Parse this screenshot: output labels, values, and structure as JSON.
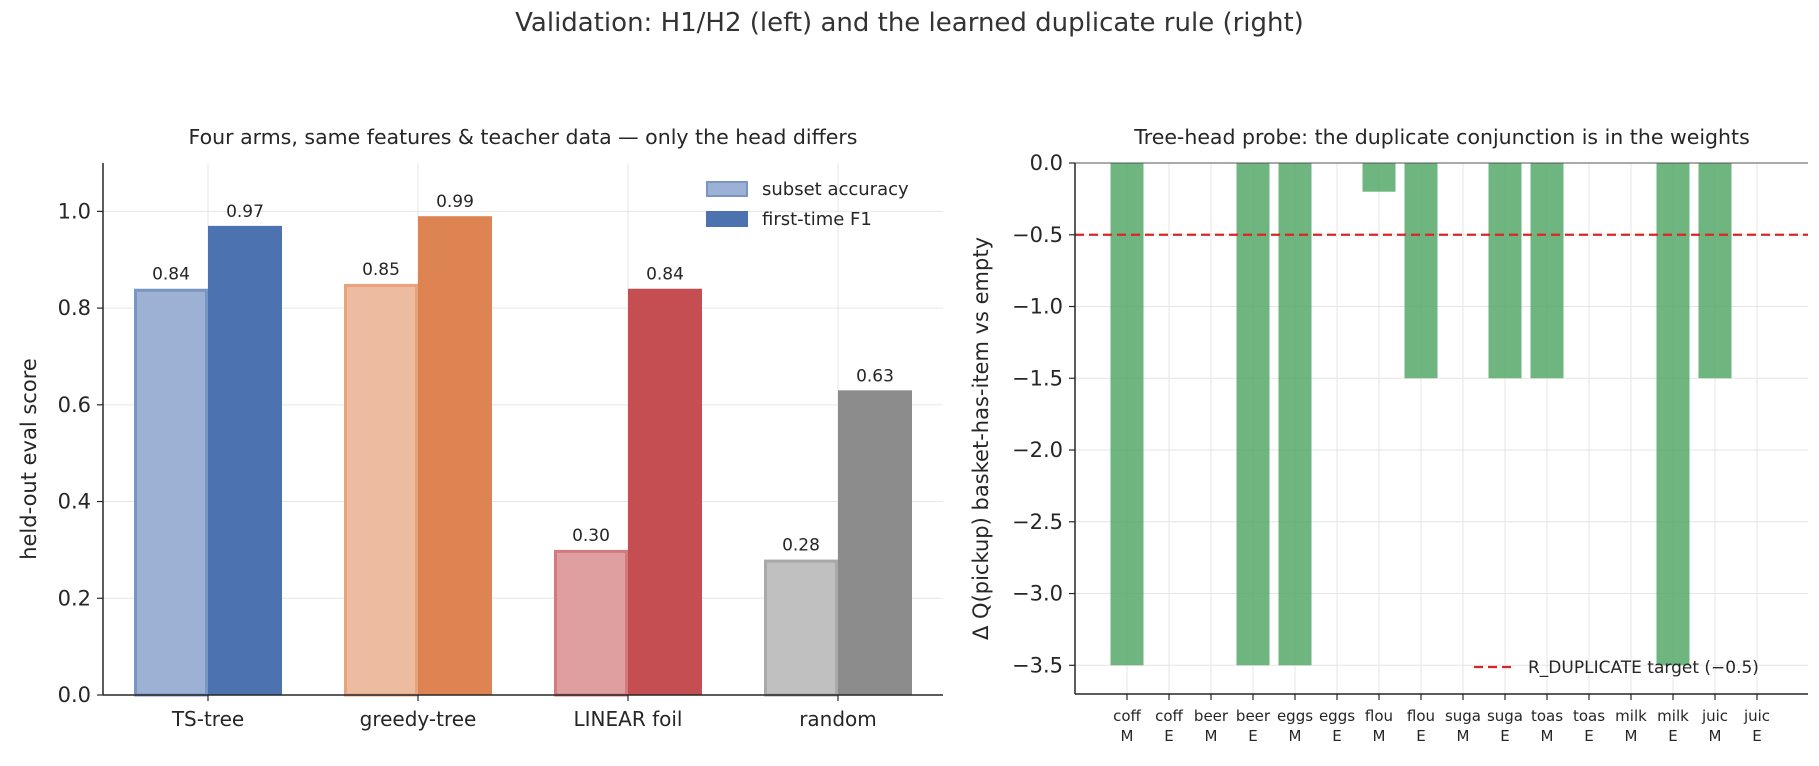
{
  "figure": {
    "suptitle": "Validation: H1/H2 (left) and the learned duplicate rule (right)"
  },
  "chart_data": [
    {
      "type": "bar",
      "title": "Four arms, same features & teacher data — only the head differs",
      "xlabel": "",
      "ylabel": "held-out eval score",
      "ylim": [
        0.0,
        1.1
      ],
      "yticks": [
        "0.0",
        "0.2",
        "0.4",
        "0.6",
        "0.8",
        "1.0"
      ],
      "grid": true,
      "legend_position": "top-right",
      "categories": [
        "TS-tree",
        "greedy-tree",
        "LINEAR foil",
        "random"
      ],
      "bar_colors": [
        "#4c72b0",
        "#dd8452",
        "#c44e52",
        "#8c8c8c"
      ],
      "series": [
        {
          "name": "subset accuracy",
          "values": [
            0.84,
            0.85,
            0.3,
            0.28
          ],
          "labels": [
            "0.84",
            "0.85",
            "0.30",
            "0.28"
          ]
        },
        {
          "name": "first-time F1",
          "values": [
            0.97,
            0.99,
            0.84,
            0.63
          ],
          "labels": [
            "0.97",
            "0.99",
            "0.84",
            "0.63"
          ]
        }
      ]
    },
    {
      "type": "bar",
      "title": "Tree-head probe: the duplicate conjunction is in the weights",
      "xlabel": "",
      "ylabel": "Δ Q(pickup)  basket-has-item vs empty",
      "ylim": [
        -3.7,
        0.0
      ],
      "yticks": [
        "0.0",
        "−0.5",
        "−1.0",
        "−1.5",
        "−2.0",
        "−2.5",
        "−3.0",
        "−3.5"
      ],
      "grid": true,
      "legend_position": "bottom-right",
      "color": "#55a868",
      "categories": [
        {
          "top": "coff",
          "bottom": "M"
        },
        {
          "top": "coff",
          "bottom": "E"
        },
        {
          "top": "beer",
          "bottom": "M"
        },
        {
          "top": "beer",
          "bottom": "E"
        },
        {
          "top": "eggs",
          "bottom": "M"
        },
        {
          "top": "eggs",
          "bottom": "E"
        },
        {
          "top": "flou",
          "bottom": "M"
        },
        {
          "top": "flou",
          "bottom": "E"
        },
        {
          "top": "suga",
          "bottom": "M"
        },
        {
          "top": "suga",
          "bottom": "E"
        },
        {
          "top": "toas",
          "bottom": "M"
        },
        {
          "top": "toas",
          "bottom": "E"
        },
        {
          "top": "milk",
          "bottom": "M"
        },
        {
          "top": "milk",
          "bottom": "E"
        },
        {
          "top": "juic",
          "bottom": "M"
        },
        {
          "top": "juic",
          "bottom": "E"
        }
      ],
      "values": [
        -3.5,
        0,
        0,
        -3.5,
        -3.5,
        0,
        -0.2,
        -1.5,
        0,
        -1.5,
        -1.5,
        0,
        0,
        -3.5,
        -1.5,
        0
      ],
      "reference_line": {
        "y": -0.5,
        "label": "R_DUPLICATE target (−0.5)",
        "color": "#d62728"
      }
    }
  ]
}
